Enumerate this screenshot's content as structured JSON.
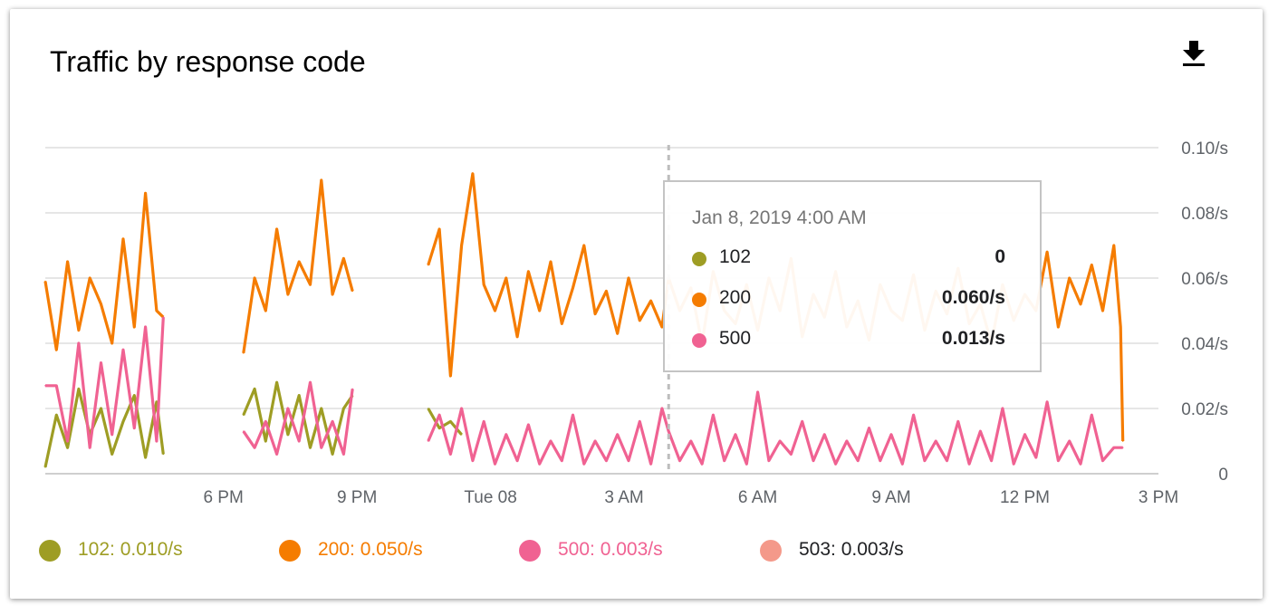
{
  "title": "Traffic by response code",
  "download_icon": "download-icon",
  "chart_data": {
    "type": "line",
    "title": "Traffic by response code",
    "y_unit": "/s",
    "ylim": [
      0,
      0.1
    ],
    "y_ticks": [
      {
        "value": 0,
        "label": "0"
      },
      {
        "value": 0.02,
        "label": "0.02/s"
      },
      {
        "value": 0.04,
        "label": "0.04/s"
      },
      {
        "value": 0.06,
        "label": "0.06/s"
      },
      {
        "value": 0.08,
        "label": "0.08/s"
      },
      {
        "value": 0.1,
        "label": "0.10/s"
      }
    ],
    "xlim_hours": [
      14,
      39
    ],
    "x_ticks": [
      {
        "hour": 18,
        "label": "6 PM"
      },
      {
        "hour": 21,
        "label": "9 PM"
      },
      {
        "hour": 24,
        "label": "Tue 08"
      },
      {
        "hour": 27,
        "label": "3 AM"
      },
      {
        "hour": 30,
        "label": "6 AM"
      },
      {
        "hour": 33,
        "label": "9 AM"
      },
      {
        "hour": 36,
        "label": "12 PM"
      },
      {
        "hour": 39,
        "label": "3 PM"
      }
    ],
    "grid": true,
    "legend_position": "bottom",
    "crosshair_hour": 28,
    "segments": [
      [
        14,
        16.65
      ],
      [
        18.45,
        20.9
      ],
      [
        22.6,
        38.2
      ]
    ],
    "series": [
      {
        "name": "102",
        "color": "#9e9d24",
        "legend_value": "0.010/s",
        "tooltip_value": "0",
        "points": [
          [
            14.0,
            0.002
          ],
          [
            14.25,
            0.018
          ],
          [
            14.5,
            0.008
          ],
          [
            14.75,
            0.026
          ],
          [
            15.0,
            0.012
          ],
          [
            15.25,
            0.02
          ],
          [
            15.5,
            0.006
          ],
          [
            15.75,
            0.016
          ],
          [
            16.0,
            0.024
          ],
          [
            16.25,
            0.005
          ],
          [
            16.5,
            0.022
          ],
          [
            16.65,
            0.006
          ],
          [
            18.45,
            0.018
          ],
          [
            18.7,
            0.026
          ],
          [
            18.95,
            0.01
          ],
          [
            19.2,
            0.028
          ],
          [
            19.45,
            0.012
          ],
          [
            19.7,
            0.024
          ],
          [
            19.95,
            0.008
          ],
          [
            20.2,
            0.02
          ],
          [
            20.45,
            0.006
          ],
          [
            20.7,
            0.02
          ],
          [
            20.9,
            0.024
          ],
          [
            22.6,
            0.02
          ],
          [
            22.85,
            0.014
          ],
          [
            23.1,
            0.016
          ],
          [
            23.35,
            0.012
          ]
        ]
      },
      {
        "name": "200",
        "color": "#f57c00",
        "legend_value": "0.050/s",
        "tooltip_value": "0.060/s",
        "points": [
          [
            14.0,
            0.059
          ],
          [
            14.25,
            0.038
          ],
          [
            14.5,
            0.065
          ],
          [
            14.75,
            0.044
          ],
          [
            15.0,
            0.06
          ],
          [
            15.25,
            0.052
          ],
          [
            15.5,
            0.04
          ],
          [
            15.75,
            0.072
          ],
          [
            16.0,
            0.045
          ],
          [
            16.25,
            0.086
          ],
          [
            16.5,
            0.05
          ],
          [
            16.65,
            0.048
          ],
          [
            18.45,
            0.037
          ],
          [
            18.7,
            0.06
          ],
          [
            18.95,
            0.05
          ],
          [
            19.2,
            0.075
          ],
          [
            19.45,
            0.055
          ],
          [
            19.7,
            0.065
          ],
          [
            19.95,
            0.058
          ],
          [
            20.2,
            0.09
          ],
          [
            20.45,
            0.055
          ],
          [
            20.7,
            0.066
          ],
          [
            20.9,
            0.056
          ],
          [
            22.6,
            0.064
          ],
          [
            22.85,
            0.075
          ],
          [
            23.1,
            0.03
          ],
          [
            23.35,
            0.07
          ],
          [
            23.6,
            0.092
          ],
          [
            23.85,
            0.058
          ],
          [
            24.1,
            0.05
          ],
          [
            24.35,
            0.06
          ],
          [
            24.6,
            0.042
          ],
          [
            24.85,
            0.062
          ],
          [
            25.1,
            0.05
          ],
          [
            25.35,
            0.065
          ],
          [
            25.6,
            0.046
          ],
          [
            25.85,
            0.057
          ],
          [
            26.1,
            0.07
          ],
          [
            26.35,
            0.049
          ],
          [
            26.6,
            0.056
          ],
          [
            26.85,
            0.043
          ],
          [
            27.1,
            0.06
          ],
          [
            27.35,
            0.047
          ],
          [
            27.6,
            0.053
          ],
          [
            27.85,
            0.045
          ],
          [
            28.0,
            0.06
          ],
          [
            28.25,
            0.05
          ],
          [
            28.5,
            0.057
          ],
          [
            28.75,
            0.04
          ],
          [
            29.0,
            0.062
          ],
          [
            29.25,
            0.05
          ],
          [
            29.5,
            0.046
          ],
          [
            29.75,
            0.058
          ],
          [
            30.0,
            0.044
          ],
          [
            30.25,
            0.06
          ],
          [
            30.5,
            0.05
          ],
          [
            30.75,
            0.066
          ],
          [
            31.0,
            0.042
          ],
          [
            31.25,
            0.055
          ],
          [
            31.5,
            0.048
          ],
          [
            31.75,
            0.062
          ],
          [
            32.0,
            0.045
          ],
          [
            32.25,
            0.053
          ],
          [
            32.5,
            0.041
          ],
          [
            32.75,
            0.058
          ],
          [
            33.0,
            0.05
          ],
          [
            33.25,
            0.047
          ],
          [
            33.5,
            0.061
          ],
          [
            33.75,
            0.044
          ],
          [
            34.0,
            0.056
          ],
          [
            34.25,
            0.049
          ],
          [
            34.5,
            0.063
          ],
          [
            34.75,
            0.046
          ],
          [
            35.0,
            0.052
          ],
          [
            35.25,
            0.04
          ],
          [
            35.5,
            0.058
          ],
          [
            35.75,
            0.047
          ],
          [
            36.0,
            0.055
          ],
          [
            36.25,
            0.05
          ],
          [
            36.5,
            0.068
          ],
          [
            36.75,
            0.045
          ],
          [
            37.0,
            0.06
          ],
          [
            37.25,
            0.052
          ],
          [
            37.5,
            0.064
          ],
          [
            37.75,
            0.05
          ],
          [
            38.0,
            0.07
          ],
          [
            38.15,
            0.045
          ],
          [
            38.2,
            0.01
          ]
        ]
      },
      {
        "name": "500",
        "color": "#f06292",
        "legend_value": "0.003/s",
        "tooltip_value": "0.013/s",
        "points": [
          [
            14.0,
            0.027
          ],
          [
            14.25,
            0.027
          ],
          [
            14.5,
            0.01
          ],
          [
            14.75,
            0.04
          ],
          [
            15.0,
            0.008
          ],
          [
            15.25,
            0.034
          ],
          [
            15.5,
            0.012
          ],
          [
            15.75,
            0.038
          ],
          [
            16.0,
            0.014
          ],
          [
            16.25,
            0.045
          ],
          [
            16.5,
            0.01
          ],
          [
            16.65,
            0.048
          ],
          [
            18.45,
            0.013
          ],
          [
            18.7,
            0.008
          ],
          [
            18.95,
            0.016
          ],
          [
            19.2,
            0.006
          ],
          [
            19.45,
            0.02
          ],
          [
            19.7,
            0.01
          ],
          [
            19.95,
            0.028
          ],
          [
            20.2,
            0.008
          ],
          [
            20.45,
            0.016
          ],
          [
            20.7,
            0.006
          ],
          [
            20.9,
            0.026
          ],
          [
            22.6,
            0.01
          ],
          [
            22.85,
            0.018
          ],
          [
            23.1,
            0.006
          ],
          [
            23.35,
            0.02
          ],
          [
            23.6,
            0.004
          ],
          [
            23.85,
            0.016
          ],
          [
            24.1,
            0.003
          ],
          [
            24.35,
            0.012
          ],
          [
            24.6,
            0.004
          ],
          [
            24.85,
            0.015
          ],
          [
            25.1,
            0.003
          ],
          [
            25.35,
            0.01
          ],
          [
            25.6,
            0.004
          ],
          [
            25.85,
            0.018
          ],
          [
            26.1,
            0.003
          ],
          [
            26.35,
            0.01
          ],
          [
            26.6,
            0.004
          ],
          [
            26.85,
            0.012
          ],
          [
            27.1,
            0.004
          ],
          [
            27.35,
            0.016
          ],
          [
            27.6,
            0.003
          ],
          [
            27.85,
            0.02
          ],
          [
            28.0,
            0.013
          ],
          [
            28.25,
            0.004
          ],
          [
            28.5,
            0.01
          ],
          [
            28.75,
            0.003
          ],
          [
            29.0,
            0.018
          ],
          [
            29.25,
            0.004
          ],
          [
            29.5,
            0.012
          ],
          [
            29.75,
            0.003
          ],
          [
            30.0,
            0.025
          ],
          [
            30.25,
            0.004
          ],
          [
            30.5,
            0.01
          ],
          [
            30.75,
            0.006
          ],
          [
            31.0,
            0.016
          ],
          [
            31.25,
            0.004
          ],
          [
            31.5,
            0.012
          ],
          [
            31.75,
            0.003
          ],
          [
            32.0,
            0.01
          ],
          [
            32.25,
            0.004
          ],
          [
            32.5,
            0.014
          ],
          [
            32.75,
            0.004
          ],
          [
            33.0,
            0.012
          ],
          [
            33.25,
            0.003
          ],
          [
            33.5,
            0.018
          ],
          [
            33.75,
            0.004
          ],
          [
            34.0,
            0.01
          ],
          [
            34.25,
            0.004
          ],
          [
            34.5,
            0.016
          ],
          [
            34.75,
            0.003
          ],
          [
            35.0,
            0.013
          ],
          [
            35.25,
            0.004
          ],
          [
            35.5,
            0.02
          ],
          [
            35.75,
            0.003
          ],
          [
            36.0,
            0.012
          ],
          [
            36.25,
            0.005
          ],
          [
            36.5,
            0.022
          ],
          [
            36.75,
            0.004
          ],
          [
            37.0,
            0.01
          ],
          [
            37.25,
            0.003
          ],
          [
            37.5,
            0.018
          ],
          [
            37.75,
            0.004
          ],
          [
            38.0,
            0.008
          ],
          [
            38.2,
            0.008
          ]
        ]
      },
      {
        "name": "503",
        "color": "#f4998a",
        "legend_value": "0.003/s",
        "points": []
      }
    ]
  },
  "tooltip": {
    "time": "Jan 8, 2019 4:00 AM",
    "rows": [
      {
        "code": "102",
        "value": "0",
        "color": "#9e9d24"
      },
      {
        "code": "200",
        "value": "0.060/s",
        "color": "#f57c00"
      },
      {
        "code": "500",
        "value": "0.013/s",
        "color": "#f06292"
      }
    ]
  },
  "legend": [
    {
      "code": "102:",
      "value": "0.010/s",
      "color": "#9e9d24",
      "text_color": "#9e9d24"
    },
    {
      "code": "200:",
      "value": "0.050/s",
      "color": "#f57c00",
      "text_color": "#f57c00"
    },
    {
      "code": "500:",
      "value": "0.003/s",
      "color": "#f06292",
      "text_color": "#f06292"
    },
    {
      "code": "503:",
      "value": "0.003/s",
      "color": "#f4998a",
      "text_color": "#202124"
    }
  ]
}
